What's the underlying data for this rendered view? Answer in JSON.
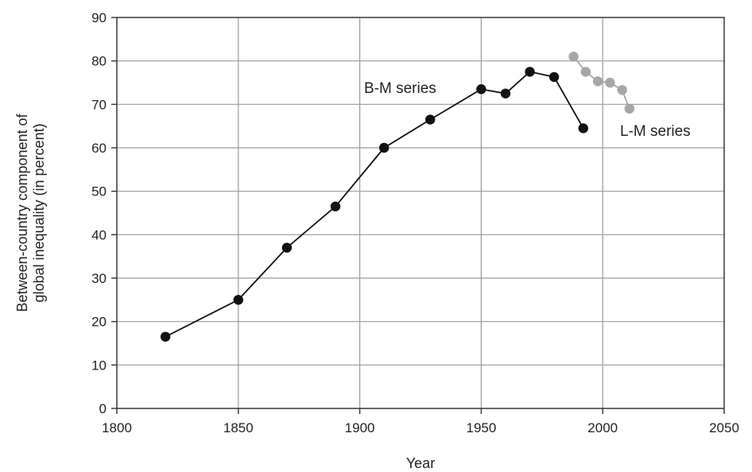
{
  "chart_data": {
    "type": "line",
    "title": "",
    "xlabel": "Year",
    "ylabel_lines": [
      "Between-country component of",
      "global inequality (in percent)"
    ],
    "xlim": [
      1800,
      2050
    ],
    "ylim": [
      0,
      90
    ],
    "x_ticks": [
      1800,
      1850,
      1900,
      1950,
      2000,
      2050
    ],
    "y_ticks": [
      0,
      10,
      20,
      30,
      40,
      50,
      60,
      70,
      80,
      90
    ],
    "grid": true,
    "series": [
      {
        "name": "B-M series",
        "color": "#111111",
        "x": [
          1820,
          1850,
          1870,
          1890,
          1910,
          1929,
          1950,
          1960,
          1970,
          1980,
          1992
        ],
        "y": [
          16.5,
          25,
          37,
          46.5,
          60,
          66.5,
          73.5,
          72.5,
          77.5,
          76.3,
          64.5
        ]
      },
      {
        "name": "L-M series",
        "color": "#a6a6a6",
        "x": [
          1988,
          1993,
          1998,
          2003,
          2008,
          2011
        ],
        "y": [
          81,
          77.5,
          75.3,
          75,
          73.3,
          69
        ]
      }
    ]
  }
}
